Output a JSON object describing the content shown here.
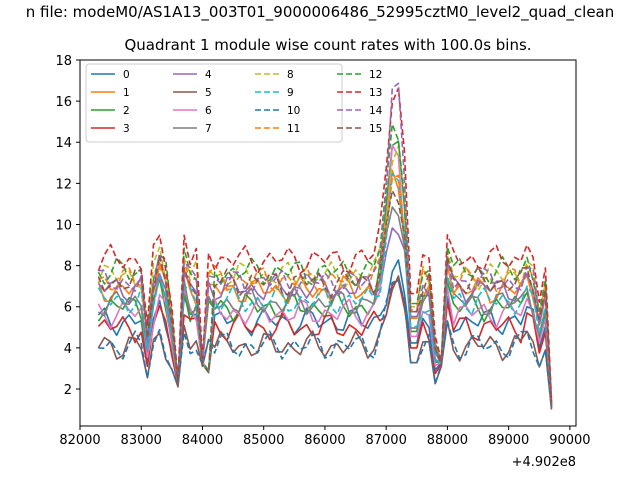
{
  "chart_data": {
    "type": "line",
    "suptitle": "n file: modeM0/AS1A13_003T01_9000006486_52995cztM0_level2_quad_clean",
    "title": "Quadrant 1 module wise count rates with 100.0s bins.",
    "xlabel": "",
    "ylabel": "",
    "x_offset_label": "+4.902e8",
    "xlim": [
      82000,
      90100
    ],
    "ylim": [
      0.2,
      18.0
    ],
    "xticks": [
      82000,
      83000,
      84000,
      85000,
      86000,
      87000,
      88000,
      89000,
      90000
    ],
    "xtick_labels": [
      "82000",
      "83000",
      "84000",
      "85000",
      "86000",
      "87000",
      "88000",
      "89000",
      "90000"
    ],
    "yticks": [
      2,
      4,
      6,
      8,
      10,
      12,
      14,
      16,
      18
    ],
    "ytick_labels": [
      "2",
      "4",
      "6",
      "8",
      "10",
      "12",
      "14",
      "16",
      "18"
    ],
    "grid": false,
    "legend_position": "top-left",
    "x_start": 82300,
    "x_step": 100,
    "bin_count": 75,
    "colors": [
      "#1f77b4",
      "#ff7f0e",
      "#2ca02c",
      "#d62728",
      "#9467bd",
      "#8c564b",
      "#e377c2",
      "#7f7f7f",
      "#bcbd22",
      "#17becf",
      "#1f77b4",
      "#ff7f0e",
      "#2ca02c",
      "#d62728",
      "#9467bd",
      "#8c564b"
    ],
    "styles": [
      "solid",
      "solid",
      "solid",
      "solid",
      "solid",
      "solid",
      "solid",
      "solid",
      "dashed",
      "dashed",
      "dashed",
      "dashed",
      "dashed",
      "dashed",
      "dashed",
      "dashed"
    ],
    "series_names": [
      "0",
      "1",
      "2",
      "3",
      "4",
      "5",
      "6",
      "7",
      "8",
      "9",
      "10",
      "11",
      "12",
      "13",
      "14",
      "15"
    ],
    "base_levels": [
      5.3,
      6.8,
      6.0,
      5.0,
      6.9,
      4.1,
      5.7,
      6.2,
      7.5,
      6.3,
      4.1,
      7.3,
      7.7,
      8.3,
      7.2,
      7.2
    ],
    "peak_values": [
      7.7,
      12.4,
      15.0,
      7.3,
      10.0,
      7.2,
      13.8,
      11.5,
      14.0,
      12.5,
      7.5,
      12.4,
      15.3,
      17.3,
      17.0,
      11.6
    ],
    "dip_values": [
      2.3,
      2.5,
      2.3,
      2.2,
      2.2,
      2.1,
      2.3,
      2.3,
      2.4,
      2.2,
      2.2,
      2.4,
      2.3,
      2.4,
      2.3,
      2.2
    ],
    "end_values": [
      1.1,
      1.2,
      1.1,
      1.1,
      1.3,
      1.0,
      1.1,
      1.1,
      1.2,
      1.1,
      1.1,
      1.2,
      1.3,
      1.5,
      1.4,
      1.2
    ]
  }
}
